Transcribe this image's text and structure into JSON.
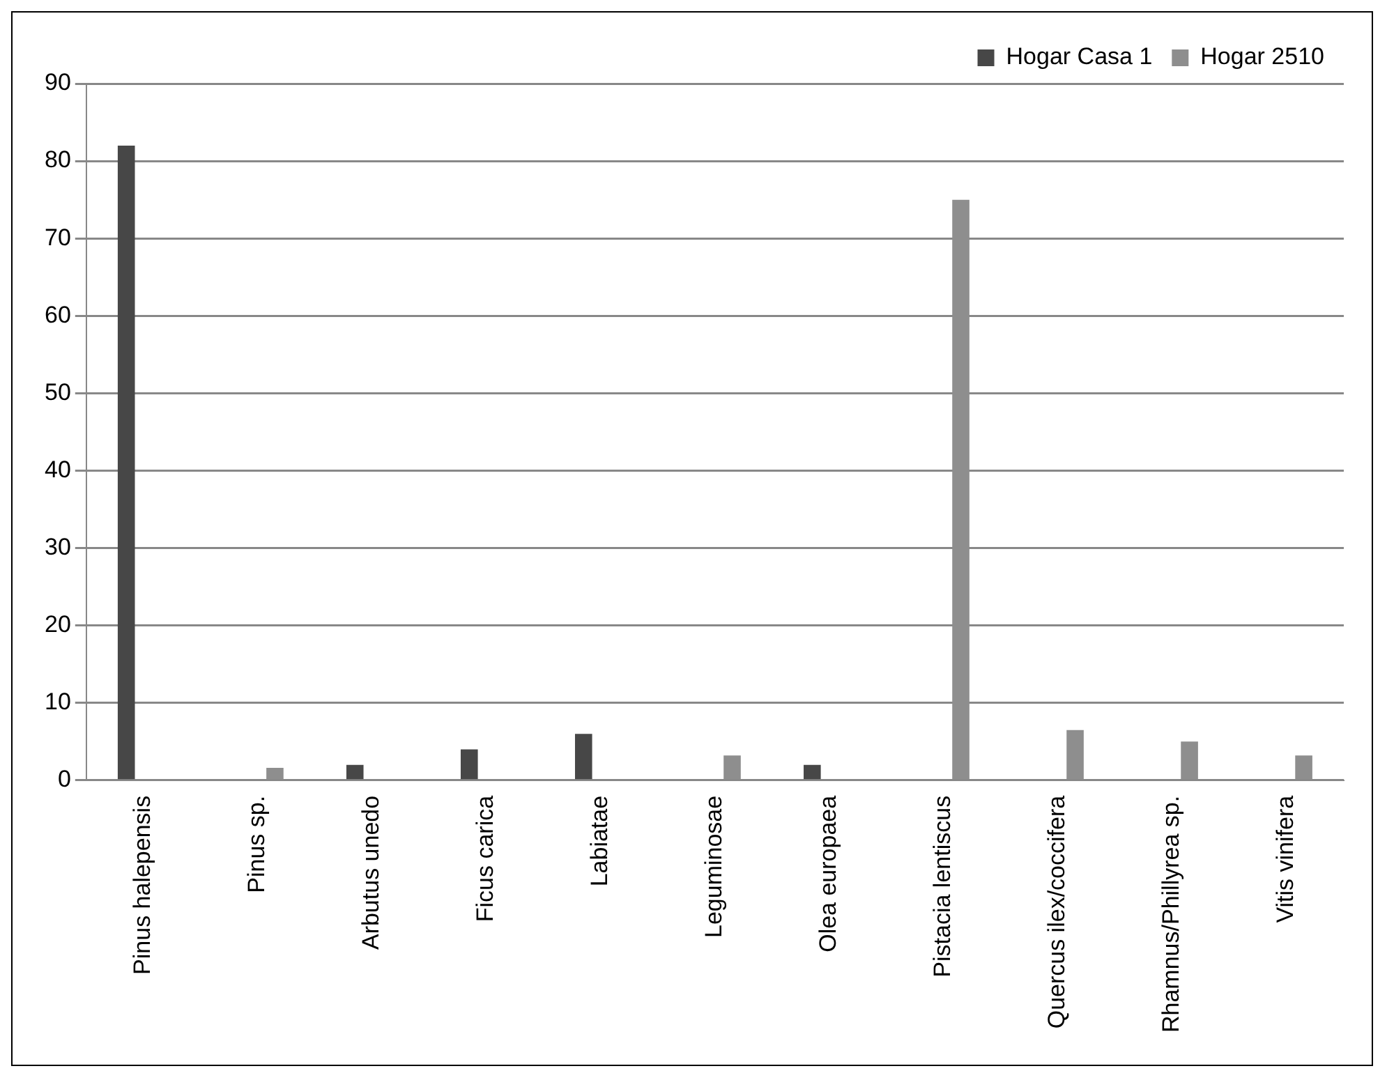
{
  "chart_data": {
    "type": "bar",
    "categories": [
      "Pinus halepensis",
      "Pinus sp.",
      "Arbutus unedo",
      "Ficus carica",
      "Labiatae",
      "Leguminosae",
      "Olea europaea",
      "Pistacia lentiscus",
      "Quercus ilex/coccifera",
      "Rhamnus/Phillyrea sp.",
      "Vitis vinifera"
    ],
    "series": [
      {
        "name": "Hogar Casa 1",
        "color": "#474747",
        "values": [
          82,
          null,
          2,
          4,
          6,
          null,
          2,
          null,
          null,
          null,
          null
        ]
      },
      {
        "name": "Hogar 2510",
        "color": "#8e8e8e",
        "values": [
          null,
          1.6,
          null,
          null,
          null,
          3.2,
          null,
          75,
          6.5,
          5,
          3.2
        ]
      }
    ],
    "ylim": [
      0,
      90
    ],
    "yticks": [
      0,
      10,
      20,
      30,
      40,
      50,
      60,
      70,
      80,
      90
    ],
    "grid": "y",
    "legend": "top right"
  }
}
